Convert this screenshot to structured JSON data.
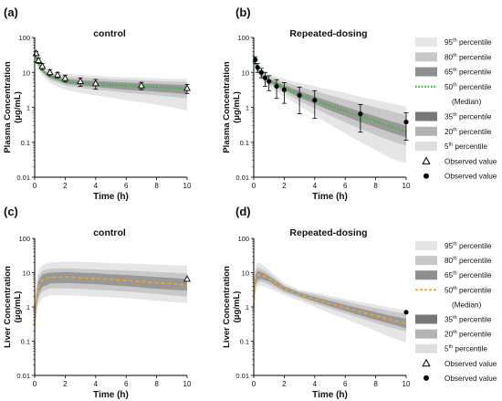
{
  "colors": {
    "band_95": "#e6e6e6",
    "band_80": "#c8c8c8",
    "band_65": "#8f8f8f",
    "band_35": "#777777",
    "band_20": "#b3b3b3",
    "band_5": "#dedede",
    "median_plasma": "#2fbf2f",
    "median_liver": "#f5a623",
    "marker": "#000000"
  },
  "legend_plasma": {
    "items": [
      {
        "pre": "95",
        "sup": "th",
        "post": " percentile",
        "kind": "band",
        "color": "#e6e6e6"
      },
      {
        "pre": "80",
        "sup": "th",
        "post": " percentile",
        "kind": "band",
        "color": "#c8c8c8"
      },
      {
        "pre": "65",
        "sup": "th",
        "post": " percentile",
        "kind": "band",
        "color": "#8f8f8f"
      },
      {
        "pre": "50",
        "sup": "th",
        "post": " percentile",
        "kind": "dots",
        "color": "#2fbf2f"
      },
      {
        "pre": "(Median)",
        "sup": "",
        "post": "",
        "kind": "none",
        "color": ""
      },
      {
        "pre": "35",
        "sup": "th",
        "post": " percentile",
        "kind": "band",
        "color": "#777777"
      },
      {
        "pre": "20",
        "sup": "th",
        "post": " percentile",
        "kind": "band",
        "color": "#b3b3b3"
      },
      {
        "pre": "5",
        "sup": "th",
        "post": " percentile",
        "kind": "band",
        "color": "#dedede"
      },
      {
        "pre": "Observed value",
        "sup": "",
        "post": "",
        "kind": "triangle",
        "color": ""
      },
      {
        "pre": "Observed value",
        "sup": "",
        "post": "",
        "kind": "circle",
        "color": ""
      }
    ]
  },
  "legend_liver": {
    "items": [
      {
        "pre": "95",
        "sup": "th",
        "post": " percentile",
        "kind": "band",
        "color": "#e6e6e6"
      },
      {
        "pre": "80",
        "sup": "th",
        "post": " percentile",
        "kind": "band",
        "color": "#c8c8c8"
      },
      {
        "pre": "65",
        "sup": "th",
        "post": " percentile",
        "kind": "band",
        "color": "#8f8f8f"
      },
      {
        "pre": "50",
        "sup": "th",
        "post": " percentile",
        "kind": "dash",
        "color": "#f5a623"
      },
      {
        "pre": "(Median)",
        "sup": "",
        "post": "",
        "kind": "none",
        "color": ""
      },
      {
        "pre": "35",
        "sup": "th",
        "post": " percentile",
        "kind": "band",
        "color": "#777777"
      },
      {
        "pre": "20",
        "sup": "th",
        "post": " percentile",
        "kind": "band",
        "color": "#b3b3b3"
      },
      {
        "pre": "5",
        "sup": "th",
        "post": " percentile",
        "kind": "band",
        "color": "#dedede"
      },
      {
        "pre": "Observed value",
        "sup": "",
        "post": "",
        "kind": "triangle",
        "color": ""
      },
      {
        "pre": "Observed value",
        "sup": "",
        "post": "",
        "kind": "circle",
        "color": ""
      }
    ]
  },
  "chart_data": [
    {
      "type": "area",
      "panel": "(a)",
      "title": "control",
      "xlabel": "Time (h)",
      "ylabel": [
        "Plasma Concentration",
        "(μg/mL)"
      ],
      "xlim": [
        0,
        10
      ],
      "ylim": [
        0.01,
        100
      ],
      "yscale": "log",
      "xticks": [
        "0",
        "2",
        "4",
        "6",
        "8",
        "10"
      ],
      "yticks": [
        "0.01",
        "0.1",
        "1",
        "10",
        "100"
      ],
      "median_style": "dots",
      "x": [
        0.05,
        0.25,
        0.5,
        1,
        2,
        3,
        4,
        5,
        6,
        7,
        8,
        9,
        10
      ],
      "bands": {
        "p95": [
          [
            20,
            45
          ],
          [
            12,
            24
          ],
          [
            8,
            15
          ],
          [
            5,
            11
          ],
          [
            3.2,
            9
          ],
          [
            2.6,
            8.5
          ],
          [
            2.2,
            8
          ],
          [
            1.9,
            7.5
          ],
          [
            1.6,
            7.2
          ],
          [
            1.4,
            7
          ],
          [
            1.2,
            6.8
          ],
          [
            1.0,
            6.6
          ],
          [
            0.8,
            6.5
          ]
        ],
        "p80": [
          [
            25,
            38
          ],
          [
            15,
            20
          ],
          [
            9.5,
            13
          ],
          [
            6.2,
            9.5
          ],
          [
            4.2,
            7.5
          ],
          [
            3.6,
            7
          ],
          [
            3.2,
            6.8
          ],
          [
            2.9,
            6.4
          ],
          [
            2.6,
            6.1
          ],
          [
            2.4,
            5.9
          ],
          [
            2.2,
            5.7
          ],
          [
            2.0,
            5.5
          ],
          [
            1.8,
            5.3
          ]
        ],
        "p65": [
          [
            28,
            34
          ],
          [
            16.5,
            19
          ],
          [
            10.5,
            12
          ],
          [
            7,
            8.6
          ],
          [
            4.8,
            6.4
          ],
          [
            4.2,
            6
          ],
          [
            3.8,
            5.7
          ],
          [
            3.5,
            5.4
          ],
          [
            3.2,
            5.1
          ],
          [
            3.0,
            4.9
          ],
          [
            2.8,
            4.7
          ],
          [
            2.6,
            4.5
          ],
          [
            2.4,
            4.3
          ]
        ]
      },
      "median": [
        30,
        17.5,
        11,
        7.5,
        5.5,
        5.0,
        4.7,
        4.4,
        4.2,
        4.0,
        3.8,
        3.6,
        3.4
      ],
      "observed": {
        "marker": "triangle",
        "x": [
          0.1,
          0.25,
          0.5,
          1,
          1.5,
          2,
          3,
          4,
          7,
          10
        ],
        "y": [
          35,
          22,
          15,
          10,
          8.5,
          6.8,
          5.5,
          4.8,
          4.2,
          3.5
        ],
        "err": [
          5,
          4,
          3,
          2,
          1.5,
          1.5,
          1.5,
          1.5,
          1.0,
          1.0
        ]
      }
    },
    {
      "type": "area",
      "panel": "(b)",
      "title": "Repeated-dosing",
      "xlabel": "Time (h)",
      "ylabel": [
        "Plasma Concentration",
        "(μg/mL)"
      ],
      "xlim": [
        0,
        10
      ],
      "ylim": [
        0.01,
        100
      ],
      "yscale": "log",
      "xticks": [
        "0",
        "2",
        "4",
        "6",
        "8",
        "10"
      ],
      "yticks": [
        "0.01",
        "0.1",
        "1",
        "10",
        "100"
      ],
      "median_style": "dots",
      "x": [
        0.05,
        0.25,
        0.5,
        1,
        2,
        3,
        4,
        5,
        6,
        7,
        8,
        9,
        10
      ],
      "bands": {
        "p95": [
          [
            15,
            30
          ],
          [
            9,
            16
          ],
          [
            6,
            12
          ],
          [
            3.8,
            9
          ],
          [
            2,
            6.5
          ],
          [
            1.1,
            5
          ],
          [
            0.6,
            4
          ],
          [
            0.32,
            3.2
          ],
          [
            0.18,
            2.6
          ],
          [
            0.1,
            2.0
          ],
          [
            0.06,
            1.6
          ],
          [
            0.035,
            1.3
          ],
          [
            0.025,
            1.05
          ]
        ],
        "p80": [
          [
            18,
            26
          ],
          [
            10.5,
            14
          ],
          [
            7,
            10
          ],
          [
            4.5,
            7.5
          ],
          [
            2.6,
            5.2
          ],
          [
            1.5,
            3.9
          ],
          [
            0.95,
            2.9
          ],
          [
            0.58,
            2.2
          ],
          [
            0.37,
            1.7
          ],
          [
            0.24,
            1.3
          ],
          [
            0.16,
            1.0
          ],
          [
            0.11,
            0.78
          ],
          [
            0.08,
            0.6
          ]
        ],
        "p65": [
          [
            20,
            24
          ],
          [
            11.5,
            13
          ],
          [
            7.8,
            9
          ],
          [
            5.2,
            6.5
          ],
          [
            3.1,
            4.3
          ],
          [
            1.9,
            2.9
          ],
          [
            1.25,
            2.05
          ],
          [
            0.82,
            1.45
          ],
          [
            0.56,
            1.05
          ],
          [
            0.38,
            0.75
          ],
          [
            0.27,
            0.55
          ],
          [
            0.19,
            0.4
          ],
          [
            0.14,
            0.3
          ]
        ]
      },
      "median": [
        22,
        12,
        8.4,
        5.8,
        3.6,
        2.35,
        1.6,
        1.1,
        0.78,
        0.55,
        0.4,
        0.28,
        0.2
      ],
      "observed": {
        "marker": "circle",
        "x": [
          0.1,
          0.25,
          0.5,
          0.75,
          1,
          1.5,
          2,
          3,
          4,
          7,
          10
        ],
        "y": [
          23,
          14,
          10,
          7,
          5.5,
          4.0,
          3.2,
          2.2,
          1.6,
          0.65,
          0.38
        ],
        "err": [
          5,
          4,
          3,
          3,
          2.5,
          2.2,
          1.9,
          1.6,
          1.4,
          0.55,
          0.32
        ]
      }
    },
    {
      "type": "area",
      "panel": "(c)",
      "title": "control",
      "xlabel": "Time (h)",
      "ylabel": [
        "Liver Concentration",
        "(μg/mL)"
      ],
      "xlim": [
        0,
        10
      ],
      "ylim": [
        0.01,
        100
      ],
      "yscale": "log",
      "xticks": [
        "0",
        "2",
        "4",
        "6",
        "8",
        "10"
      ],
      "yticks": [
        "0.01",
        "0.1",
        "1",
        "10",
        "100"
      ],
      "median_style": "dash",
      "x": [
        0,
        0.1,
        0.25,
        0.5,
        1,
        2,
        3,
        4,
        5,
        6,
        7,
        8,
        9,
        10
      ],
      "bands": {
        "p95": [
          [
            0.15,
            0.5
          ],
          [
            0.5,
            5
          ],
          [
            1.2,
            12
          ],
          [
            1.8,
            17
          ],
          [
            2.2,
            20
          ],
          [
            2.2,
            21
          ],
          [
            2.1,
            20.5
          ],
          [
            2.0,
            20
          ],
          [
            1.9,
            19
          ],
          [
            1.8,
            18.5
          ],
          [
            1.65,
            18
          ],
          [
            1.5,
            17
          ],
          [
            1.4,
            16.5
          ],
          [
            1.3,
            16
          ]
        ],
        "p80": [
          [
            0.2,
            0.4
          ],
          [
            0.8,
            3
          ],
          [
            1.8,
            8
          ],
          [
            2.8,
            11.5
          ],
          [
            3.5,
            13
          ],
          [
            3.5,
            13.5
          ],
          [
            3.4,
            13
          ],
          [
            3.2,
            12.5
          ],
          [
            3.0,
            12
          ],
          [
            2.8,
            11.5
          ],
          [
            2.6,
            11
          ],
          [
            2.4,
            10.5
          ],
          [
            2.2,
            10
          ],
          [
            2.0,
            9.5
          ]
        ],
        "p65": [
          [
            0.22,
            0.35
          ],
          [
            1.0,
            2.2
          ],
          [
            2.4,
            5.8
          ],
          [
            3.8,
            8.8
          ],
          [
            4.8,
            10
          ],
          [
            5,
            10.5
          ],
          [
            4.8,
            10
          ],
          [
            4.6,
            9.5
          ],
          [
            4.3,
            9.0
          ],
          [
            4.0,
            8.5
          ],
          [
            3.7,
            8.0
          ],
          [
            3.4,
            7.5
          ],
          [
            3.2,
            7.0
          ],
          [
            3.0,
            6.5
          ]
        ]
      },
      "median": [
        0.28,
        1.5,
        3.8,
        6.0,
        7.3,
        7.5,
        7.1,
        6.7,
        6.3,
        5.9,
        5.5,
        5.1,
        4.7,
        4.4
      ],
      "observed": {
        "marker": "triangle",
        "x": [
          10
        ],
        "y": [
          6.5
        ],
        "err": [
          0
        ]
      }
    },
    {
      "type": "area",
      "panel": "(d)",
      "title": "Repeated-dosing",
      "xlabel": "Time (h)",
      "ylabel": [
        "Liver Concentration",
        "(μg/mL)"
      ],
      "xlim": [
        0,
        10
      ],
      "ylim": [
        0.01,
        100
      ],
      "yscale": "log",
      "xticks": [
        "0",
        "2",
        "4",
        "6",
        "8",
        "10"
      ],
      "yticks": [
        "0.01",
        "0.1",
        "1",
        "10",
        "100"
      ],
      "median_style": "dash",
      "x": [
        0,
        0.1,
        0.25,
        0.5,
        1,
        2,
        3,
        4,
        5,
        6,
        7,
        8,
        9,
        10
      ],
      "bands": {
        "p95": [
          [
            0.5,
            3
          ],
          [
            2.5,
            15
          ],
          [
            4,
            20
          ],
          [
            4.2,
            18
          ],
          [
            3.5,
            12
          ],
          [
            2.2,
            5
          ],
          [
            1.5,
            3.2
          ],
          [
            1.0,
            2.6
          ],
          [
            0.65,
            2.1
          ],
          [
            0.45,
            1.7
          ],
          [
            0.3,
            1.4
          ],
          [
            0.2,
            1.15
          ],
          [
            0.13,
            0.95
          ],
          [
            0.09,
            0.8
          ]
        ],
        "p80": [
          [
            0.6,
            2.2
          ],
          [
            3.5,
            11
          ],
          [
            5.2,
            14
          ],
          [
            5.5,
            13
          ],
          [
            4.5,
            9.5
          ],
          [
            2.6,
            4.3
          ],
          [
            1.8,
            2.9
          ],
          [
            1.25,
            2.3
          ],
          [
            0.9,
            1.8
          ],
          [
            0.65,
            1.45
          ],
          [
            0.47,
            1.15
          ],
          [
            0.34,
            0.92
          ],
          [
            0.25,
            0.75
          ],
          [
            0.19,
            0.62
          ]
        ],
        "p65": [
          [
            0.7,
            1.7
          ],
          [
            4.5,
            8.5
          ],
          [
            6.3,
            11
          ],
          [
            6.5,
            10.5
          ],
          [
            5.5,
            8
          ],
          [
            3.0,
            3.9
          ],
          [
            2.05,
            2.6
          ],
          [
            1.45,
            1.95
          ],
          [
            1.05,
            1.5
          ],
          [
            0.77,
            1.15
          ],
          [
            0.57,
            0.9
          ],
          [
            0.42,
            0.7
          ],
          [
            0.32,
            0.55
          ],
          [
            0.24,
            0.45
          ]
        ]
      },
      "median": [
        1.0,
        6.5,
        8.8,
        8.5,
        6.8,
        3.4,
        2.3,
        1.7,
        1.25,
        0.95,
        0.72,
        0.55,
        0.42,
        0.33
      ],
      "observed": {
        "marker": "circle",
        "x": [
          10
        ],
        "y": [
          0.7
        ],
        "err": [
          0
        ]
      }
    }
  ]
}
